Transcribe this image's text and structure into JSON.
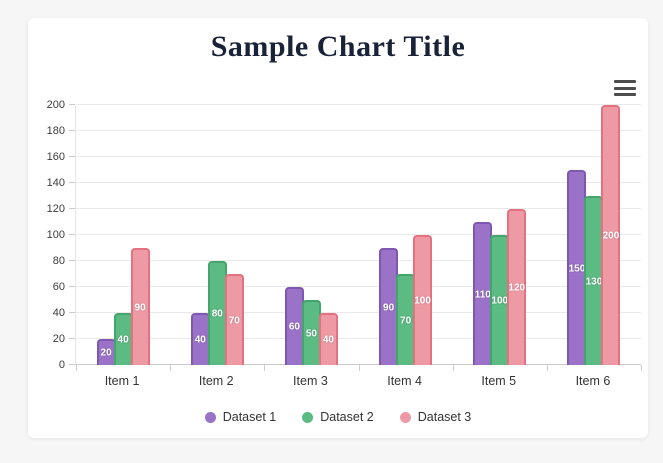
{
  "colors": {
    "page_background": "#f6f6f7",
    "card_background": "#ffffff",
    "title_color": "#1a2238",
    "gridline": "#e9e9e9",
    "axis_line": "#c9c9c9",
    "tick_label": "#3c3c3c"
  },
  "menu": {
    "icon": "hamburger-menu-icon"
  },
  "chart_data": {
    "type": "bar",
    "title": "Sample Chart Title",
    "categories": [
      "Item 1",
      "Item 2",
      "Item 3",
      "Item 4",
      "Item 5",
      "Item 6"
    ],
    "series": [
      {
        "name": "Dataset 1",
        "values": [
          20,
          40,
          60,
          90,
          110,
          150
        ],
        "fill": "#9a72c7",
        "border": "#7e57b0"
      },
      {
        "name": "Dataset 2",
        "values": [
          40,
          80,
          50,
          70,
          100,
          130
        ],
        "fill": "#5cba83",
        "border": "#43a56c"
      },
      {
        "name": "Dataset 3",
        "values": [
          90,
          70,
          40,
          100,
          120,
          200
        ],
        "fill": "#ee9aa5",
        "border": "#e4717f"
      }
    ],
    "ylim": [
      0,
      200
    ],
    "yticks": [
      0,
      20,
      40,
      60,
      80,
      100,
      120,
      140,
      160,
      180,
      200
    ],
    "grid": true,
    "bar_labels": true,
    "legend_position": "bottom",
    "xlabel": "",
    "ylabel": ""
  }
}
